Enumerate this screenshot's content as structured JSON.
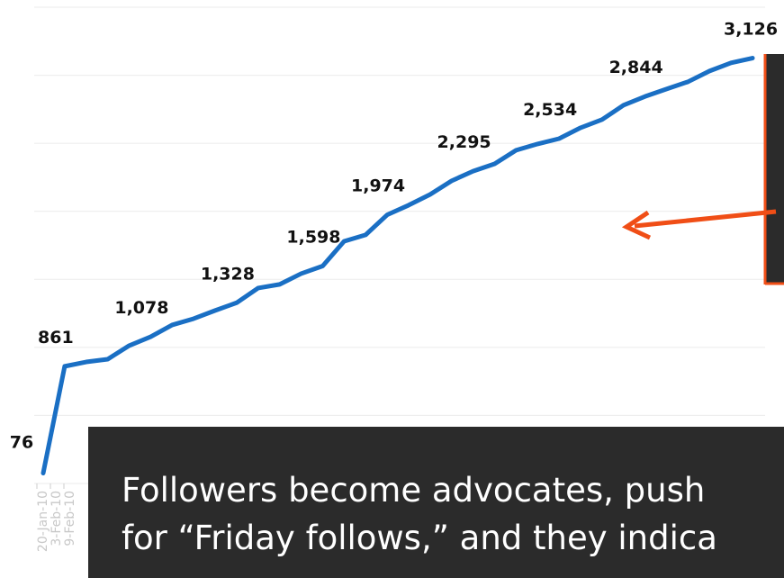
{
  "chart_data": {
    "type": "line",
    "categories": [
      "20-Jan-10",
      "3-Feb-10",
      "9-Feb-10",
      null,
      null,
      null,
      null,
      null,
      null,
      null,
      null,
      null,
      null,
      null,
      null,
      null,
      null,
      null,
      null,
      null,
      null,
      null,
      null,
      null,
      null,
      null,
      null,
      null,
      null,
      null,
      null,
      null,
      null,
      null
    ],
    "series": [
      {
        "name": null,
        "color": "#1a6fc4",
        "values": [
          76,
          861,
          893,
          913,
          1013,
          1078,
          1165,
          1211,
          1271,
          1328,
          1436,
          1463,
          1542,
          1598,
          1780,
          1827,
          1974,
          2045,
          2124,
          2224,
          2295,
          2349,
          2449,
          2495,
          2534,
          2614,
          2674,
          2780,
          2844,
          2899,
          2952,
          3031,
          3091,
          3126
        ],
        "value_labels": [
          "76",
          "861",
          null,
          null,
          null,
          "1,078",
          null,
          null,
          null,
          "1,328",
          null,
          null,
          null,
          "1,598",
          null,
          null,
          "1,974",
          null,
          null,
          null,
          "2,295",
          null,
          null,
          null,
          "2,534",
          null,
          null,
          null,
          "2,844",
          null,
          null,
          null,
          null,
          "3,126"
        ]
      }
    ],
    "ylim": [
      0,
      3500
    ],
    "yticks": [
      0,
      500,
      1000,
      1500,
      2000,
      2500,
      3000,
      3500
    ],
    "grid": true,
    "annotation": [
      "Followers become advocates, push",
      "for “Friday follows,” and they indica"
    ]
  }
}
